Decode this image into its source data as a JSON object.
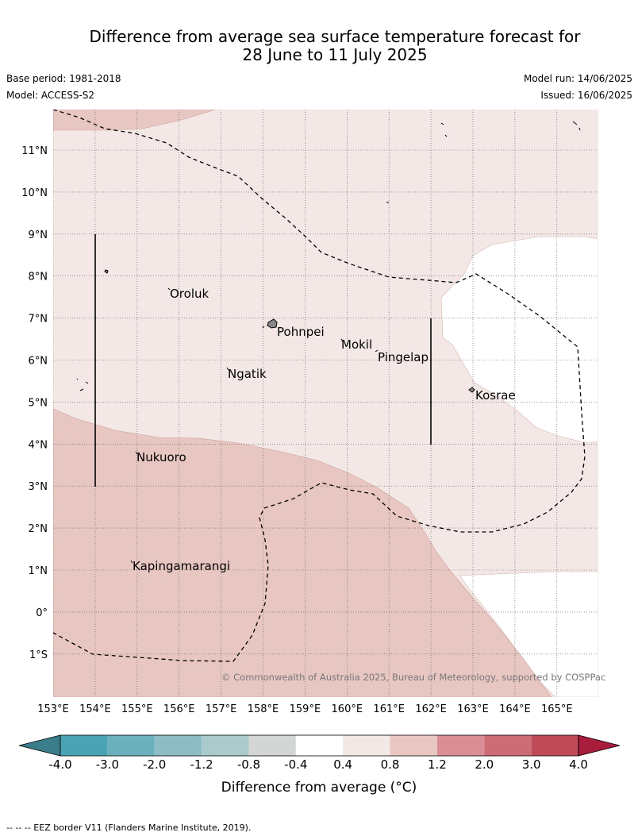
{
  "title_line1": "Difference from average sea surface temperature forecast for",
  "title_line2": "28 June to 11 July 2025",
  "base_period": "Base period: 1981-2018",
  "model": "Model: ACCESS-S2",
  "model_run": "Model run: 14/06/2025",
  "issued": "Issued: 16/06/2025",
  "lat_labels": [
    "11°N",
    "10°N",
    "9°N",
    "8°N",
    "7°N",
    "6°N",
    "5°N",
    "4°N",
    "3°N",
    "2°N",
    "1°N",
    "0°",
    "1°S"
  ],
  "lon_labels": [
    "153°E",
    "154°E",
    "155°E",
    "156°E",
    "157°E",
    "158°E",
    "159°E",
    "160°E",
    "161°E",
    "162°E",
    "163°E",
    "164°E",
    "165°E"
  ],
  "places": [
    "Oroluk",
    "Pohnpei",
    "Mokil",
    "Pingelap",
    "Ngatik",
    "Kosrae",
    "Nukuoro",
    "Kapingamarangi"
  ],
  "copyright": "© Commonwealth of Australia 2025, Bureau of Meteorology, supported by COSPPac",
  "colorbar": {
    "ticks": [
      "-4.0",
      "-3.0",
      "-2.0",
      "-1.2",
      "-0.8",
      "-0.4",
      "0.4",
      "0.8",
      "1.2",
      "2.0",
      "3.0",
      "4.0"
    ],
    "colors": [
      "#4aa3b4",
      "#6cb0bd",
      "#8dbcc4",
      "#aacacb",
      "#d3d6d4",
      "#ffffff",
      "#f4e8e6",
      "#e8c7c2",
      "#d98e95",
      "#cc6c75",
      "#c14a58"
    ],
    "under_color": "#3a7e8c",
    "over_color": "#a81c3c",
    "label": "Difference from average (°C)"
  },
  "colors": {
    "warm_light": "#f4e8e6",
    "warm_mid": "#e8c7c2",
    "neutral": "#ffffff"
  },
  "footer": "--  --  -- EEZ border V11 (Flanders Marine Institute, 2019)."
}
